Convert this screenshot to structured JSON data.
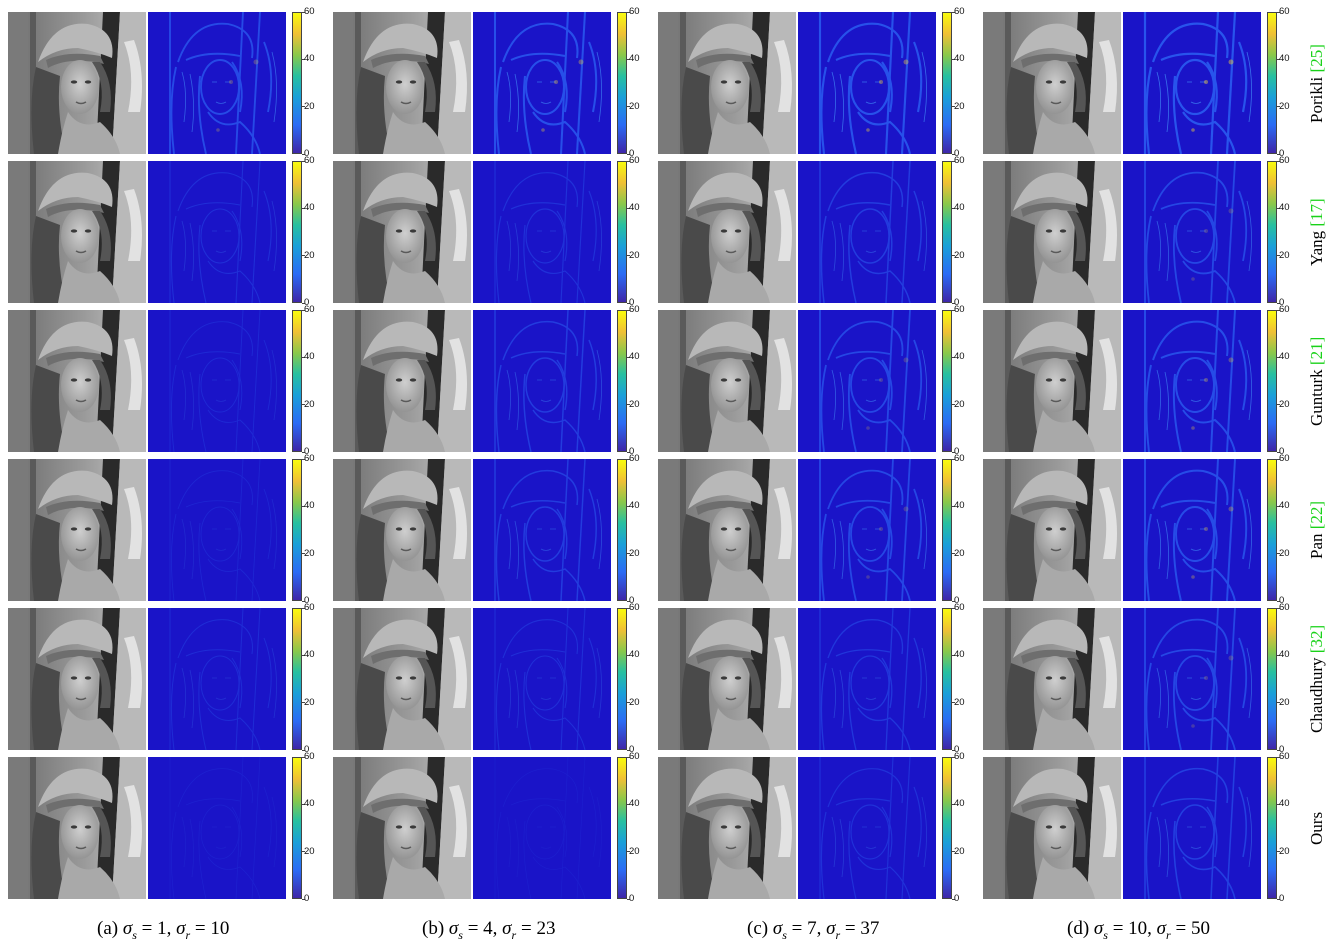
{
  "colorbar_ticks": [
    "0",
    "20",
    "40",
    "60"
  ],
  "rows": [
    {
      "method": "Porikli",
      "citation": "[25]"
    },
    {
      "method": "Yang",
      "citation": "[17]"
    },
    {
      "method": "Gunturk",
      "citation": "[21]"
    },
    {
      "method": "Pan",
      "citation": "[22]"
    },
    {
      "method": "Chaudhury",
      "citation": "[32]"
    },
    {
      "method": "Ours",
      "citation": ""
    }
  ],
  "columns": [
    {
      "tag": "(a)",
      "sigma_s": "1",
      "sigma_r": "10"
    },
    {
      "tag": "(b)",
      "sigma_s": "4",
      "sigma_r": "23"
    },
    {
      "tag": "(c)",
      "sigma_s": "7",
      "sigma_r": "37"
    },
    {
      "tag": "(d)",
      "sigma_s": "10",
      "sigma_r": "50"
    }
  ],
  "colors": {
    "citation": "#19d219",
    "error_background": "#1a14c8",
    "error_edge_low": "#2a5cf0",
    "error_edge_high": "#f2d23a"
  },
  "error_intensity": [
    [
      0.8,
      0.9,
      0.95,
      1.0
    ],
    [
      0.3,
      0.35,
      0.55,
      0.75
    ],
    [
      0.2,
      0.55,
      0.75,
      0.85
    ],
    [
      0.15,
      0.55,
      0.75,
      0.85
    ],
    [
      0.25,
      0.3,
      0.45,
      0.75
    ],
    [
      0.05,
      0.02,
      0.35,
      0.6
    ]
  ]
}
